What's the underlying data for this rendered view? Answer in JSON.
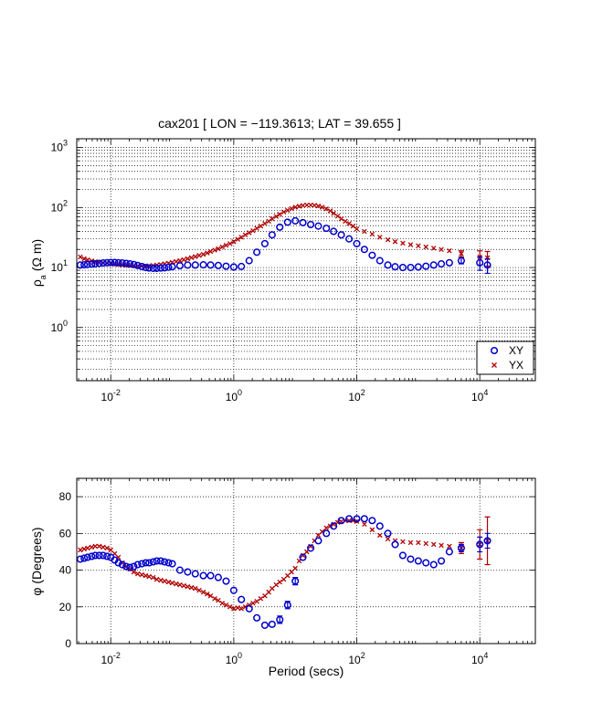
{
  "chart_data": [
    {
      "type": "scatter",
      "title": "cax201 [ LON = −119.3613; LAT = 39.655 ]",
      "ylabel_sym": "ρ",
      "ylabel_sub": "a",
      "ylabel_unit": "(Ω m)",
      "x_scale": "log",
      "y_scale": "log",
      "xlim": [
        0.0028,
        80000
      ],
      "ylim": [
        0.13,
        1400
      ],
      "x_ticks": [
        {
          "label_base": "10",
          "label_exp": "-2",
          "value": 0.01
        },
        {
          "label_base": "10",
          "label_exp": "0",
          "value": 1
        },
        {
          "label_base": "10",
          "label_exp": "2",
          "value": 100
        },
        {
          "label_base": "10",
          "label_exp": "4",
          "value": 10000
        }
      ],
      "y_ticks": [
        {
          "label_base": "10",
          "label_exp": "0",
          "value": 1
        },
        {
          "label_base": "10",
          "label_exp": "1",
          "value": 10
        },
        {
          "label_base": "10",
          "label_exp": "2",
          "value": 100
        },
        {
          "label_base": "10",
          "label_exp": "3",
          "value": 1000
        }
      ],
      "grid": true,
      "legend_position": "bottom-right",
      "series": [
        {
          "name": "XY",
          "marker": "circle",
          "color": "#0000cc",
          "x": [
            0.0032,
            0.0037,
            0.0042,
            0.0049,
            0.0056,
            0.0065,
            0.0075,
            0.0087,
            0.01,
            0.0116,
            0.0133,
            0.0154,
            0.0178,
            0.0205,
            0.0237,
            0.0274,
            0.032,
            0.037,
            0.042,
            0.049,
            0.056,
            0.065,
            0.075,
            0.087,
            0.1,
            0.133,
            0.178,
            0.237,
            0.32,
            0.42,
            0.56,
            0.75,
            1.0,
            1.33,
            1.78,
            2.37,
            3.2,
            4.2,
            5.6,
            7.5,
            10,
            13.3,
            17.8,
            23.7,
            32,
            42,
            56,
            75,
            100,
            133,
            178,
            237,
            320,
            420,
            560,
            750,
            1000,
            1330,
            1780,
            2370,
            3200,
            5000,
            10000,
            13300
          ],
          "y": [
            11.0,
            11.1,
            11.2,
            11.4,
            11.5,
            11.7,
            11.9,
            12.0,
            12.1,
            12.1,
            12.0,
            11.9,
            11.7,
            11.5,
            11.2,
            10.8,
            10.4,
            10.0,
            9.8,
            9.7,
            9.7,
            9.8,
            9.9,
            10.1,
            10.3,
            10.7,
            11.0,
            11.0,
            11.1,
            11.0,
            10.8,
            10.5,
            10.2,
            10.4,
            13.0,
            18.0,
            25.0,
            35.0,
            47.0,
            57.0,
            60.0,
            56.0,
            52.0,
            49.0,
            45.0,
            40.0,
            35.0,
            30.0,
            25.0,
            20.0,
            16.0,
            13.0,
            11.0,
            10.3,
            10.0,
            10.0,
            10.2,
            10.5,
            11.0,
            11.5,
            12.0,
            13.0,
            12.0,
            11.0
          ],
          "err": [
            0,
            0,
            0,
            0,
            0,
            0,
            0,
            0,
            0,
            0,
            0,
            0,
            0,
            0,
            0,
            0,
            0,
            0,
            0,
            0,
            0,
            0,
            0,
            0,
            0,
            0,
            0,
            0,
            0,
            0,
            0,
            0,
            0,
            0,
            0,
            0,
            0,
            0,
            0,
            0,
            0,
            0,
            0,
            0,
            0,
            0,
            0,
            0,
            0,
            0,
            0,
            0,
            0,
            0,
            0,
            0,
            0,
            0,
            0,
            0,
            0,
            1.5,
            3.0,
            3.0
          ]
        },
        {
          "name": "YX",
          "marker": "x",
          "color": "#b00000",
          "x": [
            0.0032,
            0.0037,
            0.0042,
            0.0049,
            0.0056,
            0.0065,
            0.0075,
            0.0087,
            0.01,
            0.0116,
            0.0133,
            0.0154,
            0.0178,
            0.0205,
            0.0237,
            0.0274,
            0.032,
            0.037,
            0.042,
            0.049,
            0.056,
            0.065,
            0.075,
            0.087,
            0.1,
            0.116,
            0.133,
            0.154,
            0.178,
            0.205,
            0.237,
            0.274,
            0.32,
            0.37,
            0.42,
            0.49,
            0.56,
            0.65,
            0.75,
            0.87,
            1.0,
            1.16,
            1.33,
            1.54,
            1.78,
            2.05,
            2.37,
            2.74,
            3.2,
            3.7,
            4.2,
            4.9,
            5.6,
            6.5,
            7.5,
            8.7,
            10,
            11.6,
            13.3,
            15.4,
            17.8,
            20.5,
            23.7,
            27.4,
            32,
            37,
            42,
            49,
            56,
            65,
            75,
            87,
            100,
            133,
            178,
            237,
            320,
            420,
            560,
            750,
            1000,
            1330,
            1780,
            2370,
            3200,
            5000,
            10000,
            13300
          ],
          "y": [
            15.0,
            14.0,
            13.4,
            12.9,
            12.5,
            12.2,
            12.0,
            11.8,
            11.6,
            11.4,
            11.2,
            11.0,
            10.9,
            10.8,
            10.7,
            10.6,
            10.6,
            10.6,
            10.7,
            10.8,
            11.0,
            11.2,
            11.5,
            11.8,
            12.2,
            12.6,
            13.0,
            13.5,
            14.0,
            14.6,
            15.2,
            15.9,
            16.6,
            17.5,
            18.5,
            19.5,
            20.5,
            22.0,
            23.5,
            25.0,
            27.0,
            29.5,
            32.0,
            35.0,
            38.0,
            41.0,
            45.0,
            49.0,
            54.0,
            59.0,
            65.0,
            71.0,
            77.0,
            84.0,
            90.0,
            96.0,
            101.0,
            105.0,
            108.0,
            110.0,
            110.0,
            109.0,
            106.0,
            101.0,
            95.0,
            88.0,
            80.0,
            72.0,
            65.0,
            59.0,
            54.0,
            49.0,
            44.0,
            40.0,
            36.0,
            32.0,
            29.0,
            27.0,
            25.5,
            24.0,
            23.0,
            22.0,
            21.0,
            20.0,
            19.0,
            17.0,
            15.0,
            14.5
          ],
          "err": [
            0,
            0,
            0,
            0,
            0,
            0,
            0,
            0,
            0,
            0,
            0,
            0,
            0,
            0,
            0,
            0,
            0,
            0,
            0,
            0,
            0,
            0,
            0,
            0,
            0,
            0,
            0,
            0,
            0,
            0,
            0,
            0,
            0,
            0,
            0,
            0,
            0,
            0,
            0,
            0,
            0,
            0,
            0,
            0,
            0,
            0,
            0,
            0,
            0,
            0,
            0,
            0,
            0,
            0,
            0,
            0,
            0,
            0,
            0,
            0,
            0,
            0,
            0,
            0,
            0,
            0,
            0,
            0,
            0,
            0,
            0,
            0,
            0,
            0,
            0,
            0,
            0,
            0,
            0,
            0,
            0,
            0,
            0,
            0,
            0,
            2.0,
            4.0,
            4.0
          ]
        }
      ]
    },
    {
      "type": "scatter",
      "xlabel": "Period (secs)",
      "ylabel": "φ (Degrees)",
      "x_scale": "log",
      "y_scale": "linear",
      "xlim": [
        0.0028,
        80000
      ],
      "ylim": [
        0,
        90
      ],
      "x_ticks": [
        {
          "label_base": "10",
          "label_exp": "-2",
          "value": 0.01
        },
        {
          "label_base": "10",
          "label_exp": "0",
          "value": 1
        },
        {
          "label_base": "10",
          "label_exp": "2",
          "value": 100
        },
        {
          "label_base": "10",
          "label_exp": "4",
          "value": 10000
        }
      ],
      "y_ticks": [
        {
          "label": "0",
          "value": 0
        },
        {
          "label": "20",
          "value": 20
        },
        {
          "label": "40",
          "value": 40
        },
        {
          "label": "60",
          "value": 60
        },
        {
          "label": "80",
          "value": 80
        }
      ],
      "grid": true,
      "series": [
        {
          "name": "XY",
          "marker": "circle",
          "color": "#0000cc",
          "x": [
            0.0032,
            0.0037,
            0.0042,
            0.0049,
            0.0056,
            0.0065,
            0.0075,
            0.0087,
            0.01,
            0.0116,
            0.0133,
            0.0154,
            0.0178,
            0.0205,
            0.0237,
            0.0274,
            0.032,
            0.037,
            0.042,
            0.049,
            0.056,
            0.065,
            0.075,
            0.087,
            0.1,
            0.133,
            0.178,
            0.237,
            0.32,
            0.42,
            0.56,
            0.75,
            1.0,
            1.33,
            1.78,
            2.37,
            3.2,
            4.2,
            5.6,
            7.5,
            10,
            13.3,
            17.8,
            23.7,
            32,
            42,
            56,
            75,
            100,
            133,
            178,
            237,
            320,
            420,
            560,
            750,
            1000,
            1330,
            1780,
            2370,
            3200,
            5000,
            10000,
            13300
          ],
          "y": [
            46,
            46.5,
            47,
            47.5,
            48,
            48,
            48,
            47.5,
            47,
            45.5,
            44,
            43,
            42,
            41.5,
            42,
            43,
            43.5,
            44,
            44,
            44.5,
            45,
            45,
            44.5,
            44,
            43.5,
            40,
            39,
            38,
            37,
            37,
            36,
            34,
            29,
            24,
            19,
            14,
            10,
            10.5,
            13,
            21,
            34,
            47,
            52,
            56,
            60,
            64,
            67,
            68,
            68,
            68,
            67,
            64,
            60,
            54,
            48,
            46,
            45,
            44,
            43,
            45,
            50,
            52,
            54,
            56
          ],
          "err": [
            0,
            0,
            0,
            0,
            0,
            0,
            0,
            0,
            0,
            0,
            0,
            0,
            0,
            0,
            0,
            0,
            0,
            0,
            0,
            0,
            0,
            0,
            0,
            0,
            0,
            0,
            0,
            0,
            0,
            0,
            0,
            0,
            0,
            0,
            0,
            0,
            0,
            0,
            2,
            2,
            2,
            0,
            0,
            0,
            0,
            0,
            0,
            0,
            0,
            0,
            0,
            0,
            0,
            0,
            0,
            0,
            0,
            0,
            0,
            0,
            0,
            2,
            4,
            4
          ]
        },
        {
          "name": "YX",
          "marker": "x",
          "color": "#b00000",
          "x": [
            0.0032,
            0.0037,
            0.0042,
            0.0049,
            0.0056,
            0.0065,
            0.0075,
            0.0087,
            0.01,
            0.0116,
            0.0133,
            0.0154,
            0.0178,
            0.0205,
            0.0237,
            0.0274,
            0.032,
            0.037,
            0.042,
            0.049,
            0.056,
            0.065,
            0.075,
            0.087,
            0.1,
            0.116,
            0.133,
            0.154,
            0.178,
            0.205,
            0.237,
            0.274,
            0.32,
            0.37,
            0.42,
            0.49,
            0.56,
            0.65,
            0.75,
            0.87,
            1.0,
            1.16,
            1.33,
            1.54,
            1.78,
            2.05,
            2.37,
            2.74,
            3.2,
            3.7,
            4.2,
            4.9,
            5.6,
            6.5,
            7.5,
            8.7,
            10,
            11.6,
            13.3,
            15.4,
            17.8,
            20.5,
            23.7,
            27.4,
            32,
            37,
            42,
            49,
            56,
            65,
            75,
            87,
            100,
            133,
            178,
            237,
            320,
            420,
            560,
            750,
            1000,
            1330,
            1780,
            2370,
            3200,
            5000,
            10000,
            13300
          ],
          "y": [
            51,
            51.5,
            52,
            52.5,
            53,
            53,
            52.5,
            52,
            51,
            49,
            47,
            44,
            42,
            40.5,
            39,
            38,
            37.5,
            37,
            36.5,
            36,
            35,
            34.5,
            34,
            33.5,
            33,
            32.5,
            32,
            31.5,
            31,
            30.5,
            30,
            29,
            28,
            27,
            26,
            24.5,
            23.5,
            22,
            21,
            20,
            19,
            19.5,
            19,
            20,
            21,
            22,
            23,
            24.5,
            26,
            28,
            30,
            32,
            33.5,
            35,
            37,
            39,
            41,
            45,
            48,
            50,
            53,
            56,
            59,
            61,
            63,
            64,
            65,
            66,
            66.5,
            67,
            67,
            67,
            66.5,
            65,
            62,
            59,
            57,
            56,
            55.5,
            55,
            55,
            54.5,
            54,
            53.5,
            53,
            52,
            54,
            56
          ],
          "err": [
            0,
            0,
            0,
            0,
            0,
            0,
            0,
            0,
            0,
            0,
            0,
            0,
            0,
            0,
            0,
            0,
            0,
            0,
            0,
            0,
            0,
            0,
            0,
            0,
            0,
            0,
            0,
            0,
            0,
            0,
            0,
            0,
            0,
            0,
            0,
            0,
            0,
            0,
            0,
            0,
            0,
            0,
            0,
            0,
            0,
            0,
            0,
            0,
            0,
            0,
            0,
            0,
            0,
            0,
            0,
            0,
            0,
            0,
            0,
            0,
            0,
            0,
            0,
            0,
            0,
            0,
            0,
            0,
            0,
            0,
            0,
            0,
            0,
            0,
            0,
            0,
            0,
            0,
            0,
            0,
            0,
            0,
            0,
            0,
            0,
            3,
            8,
            13
          ]
        }
      ]
    }
  ]
}
